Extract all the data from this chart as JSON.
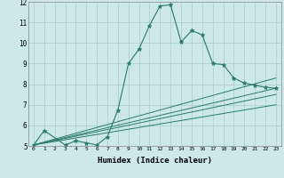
{
  "title": "",
  "xlabel": "Humidex (Indice chaleur)",
  "xlim": [
    -0.5,
    23.5
  ],
  "ylim": [
    5,
    12
  ],
  "yticks": [
    5,
    6,
    7,
    8,
    9,
    10,
    11,
    12
  ],
  "xticks": [
    0,
    1,
    2,
    3,
    4,
    5,
    6,
    7,
    8,
    9,
    10,
    11,
    12,
    13,
    14,
    15,
    16,
    17,
    18,
    19,
    20,
    21,
    22,
    23
  ],
  "bg_color": "#cce8e8",
  "grid_color": "#aacccc",
  "line_color": "#2a7a6a",
  "lines": [
    {
      "x": [
        0,
        1,
        3,
        4,
        5,
        6,
        7,
        8,
        9,
        10,
        11,
        12,
        13,
        14,
        15,
        16,
        17,
        18,
        19,
        20,
        21,
        22,
        23
      ],
      "y": [
        5.05,
        5.75,
        5.05,
        5.25,
        5.15,
        5.05,
        5.45,
        6.75,
        9.0,
        9.7,
        10.85,
        11.8,
        11.85,
        10.05,
        10.6,
        10.4,
        9.0,
        8.95,
        8.3,
        8.05,
        7.95,
        7.85,
        7.8
      ],
      "marker": "*",
      "markersize": 3.5,
      "lw": 0.8
    },
    {
      "x": [
        0,
        23
      ],
      "y": [
        5.05,
        8.3
      ],
      "marker": null,
      "markersize": 0,
      "lw": 0.7
    },
    {
      "x": [
        0,
        23
      ],
      "y": [
        5.05,
        7.8
      ],
      "marker": null,
      "markersize": 0,
      "lw": 0.7
    },
    {
      "x": [
        0,
        23
      ],
      "y": [
        5.05,
        7.5
      ],
      "marker": null,
      "markersize": 0,
      "lw": 0.7
    },
    {
      "x": [
        0,
        23
      ],
      "y": [
        5.05,
        7.0
      ],
      "marker": null,
      "markersize": 0,
      "lw": 0.7
    }
  ]
}
